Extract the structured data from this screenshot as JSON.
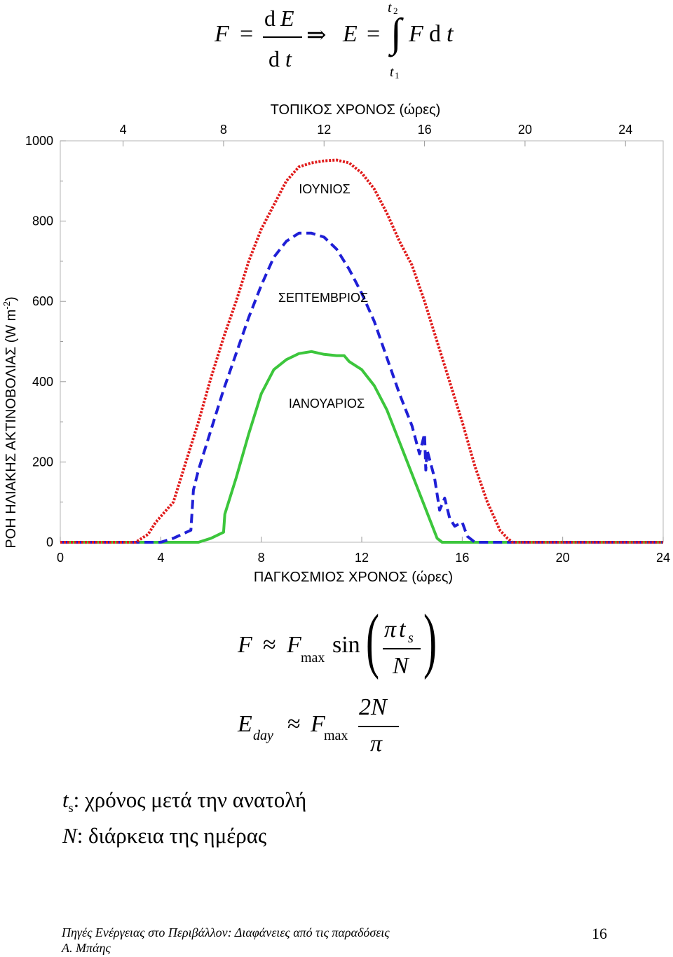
{
  "equations": {
    "top": {
      "F": "F",
      "eq1": "=",
      "d1": "d",
      "E1": "E",
      "d2": "d",
      "t1": "t",
      "implies": "⇒",
      "E2": "E",
      "eq2": "=",
      "upper_t": "t",
      "upper_sub": "2",
      "lower_t": "t",
      "lower_sub": "1",
      "integral": "∫",
      "F2": "F",
      "d3": "d",
      "t2": "t"
    },
    "sine": {
      "F": "F",
      "approx": "≈",
      "Fmax": "F",
      "max": "max",
      "sin": "sin",
      "pi": "π",
      "t": "t",
      "s": "s",
      "N": "N"
    },
    "eday": {
      "E": "E",
      "day": "day",
      "approx": "≈",
      "Fmax": "F",
      "max": "max",
      "num": "2N",
      "den": "π"
    }
  },
  "notes": {
    "line1_t": "t",
    "line1_sub": "s",
    "line1_text": ": χρόνος μετά την ανατολή",
    "line2_N": "N",
    "line2_text": ": διάρκεια της ημέρας"
  },
  "footer": {
    "line1": "Πηγές Ενέργειας στο Περιβάλλον: Διαφάνειες από τις παραδόσεις",
    "line2": "Α. Μπάης",
    "page_number": "16"
  },
  "chart_data": {
    "type": "line",
    "title": "",
    "top_xlabel": "ΤΟΠΙΚΟΣ ΧΡΟΝΟΣ (ώρες)",
    "xlabel": "ΠΑΓΚΟΣΜΙΟΣ ΧΡΟΝΟΣ (ώρες)",
    "ylabel": "ΡΟΗ ΗΛΙΑΚΗΣ ΑΚΤΙΝΟΒΟΛΙΑΣ (W m-2)",
    "ylabel_main": "ΡΟΗ ΗΛΙΑΚΗΣ ΑΚΤΙΝΟΒΟΛΙΑΣ (W m",
    "ylabel_sup": "-2",
    "ylabel_end": ")",
    "xlim": [
      0,
      24
    ],
    "ylim": [
      0,
      1000
    ],
    "x_ticks": [
      "0",
      "4",
      "8",
      "12",
      "16",
      "20",
      "24"
    ],
    "top_ticks": [
      "4",
      "8",
      "12",
      "16",
      "20",
      "24"
    ],
    "y_ticks": [
      "0",
      "200",
      "400",
      "600",
      "800",
      "1000"
    ],
    "grid": false,
    "series": [
      {
        "name": "ΙΟΥΝΙΟΣ",
        "color": "#e01b1b",
        "style": "dotted",
        "x": [
          0,
          1,
          2,
          3,
          3.5,
          3.8,
          4.5,
          5,
          5.5,
          6,
          6.5,
          7,
          7.5,
          8,
          8.5,
          9,
          9.5,
          10,
          10.5,
          11,
          11.5,
          12,
          12.5,
          13,
          13.5,
          14,
          14.5,
          15,
          15.5,
          16,
          16.5,
          17,
          17.5,
          17.8,
          18,
          19,
          20,
          22,
          24
        ],
        "y": [
          0,
          0,
          0,
          0,
          20,
          50,
          100,
          200,
          300,
          410,
          510,
          600,
          700,
          780,
          840,
          900,
          935,
          945,
          950,
          952,
          945,
          920,
          880,
          820,
          750,
          690,
          600,
          500,
          400,
          300,
          190,
          100,
          30,
          10,
          0,
          0,
          0,
          0,
          0
        ]
      },
      {
        "name": "ΣΕΠΤΕΜΒΡΙΟΣ",
        "color": "#1f1fd6",
        "style": "dashed",
        "x": [
          0,
          2,
          4,
          4.5,
          5.2,
          5.3,
          5.5,
          6,
          6.5,
          7,
          7.5,
          8,
          8.5,
          9,
          9.5,
          10,
          10.5,
          11,
          11.5,
          12,
          12.5,
          13,
          13.5,
          14,
          14.3,
          14.5,
          14.55,
          14.6,
          14.9,
          15.1,
          15.3,
          15.5,
          15.7,
          16,
          16.2,
          16.5,
          18,
          20,
          24
        ],
        "y": [
          0,
          0,
          0,
          10,
          30,
          130,
          180,
          280,
          380,
          470,
          560,
          640,
          710,
          750,
          770,
          770,
          760,
          730,
          680,
          620,
          550,
          460,
          370,
          290,
          220,
          270,
          180,
          230,
          160,
          80,
          110,
          60,
          40,
          50,
          15,
          0,
          0,
          0,
          0
        ]
      },
      {
        "name": "ΙΑΝΟΥΑΡΙΟΣ",
        "color": "#3cc63c",
        "style": "solid",
        "x": [
          0,
          2,
          4,
          5.5,
          6,
          6.5,
          6.55,
          7,
          7.5,
          8,
          8.5,
          9,
          9.5,
          10,
          10.5,
          11,
          11.3,
          11.5,
          12,
          12.5,
          13,
          13.5,
          14,
          14.5,
          15,
          15.2,
          16,
          18,
          20,
          24
        ],
        "y": [
          0,
          0,
          0,
          0,
          10,
          25,
          70,
          160,
          270,
          370,
          430,
          455,
          470,
          475,
          468,
          465,
          465,
          450,
          430,
          390,
          330,
          250,
          170,
          90,
          10,
          0,
          0,
          0,
          0,
          0
        ]
      }
    ],
    "annotations": [
      "ΙΟΥΝΙΟΣ",
      "ΣΕΠΤΕΜΒΡΙΟΣ",
      "ΙΑΝΟΥΑΡΙΟΣ"
    ]
  }
}
